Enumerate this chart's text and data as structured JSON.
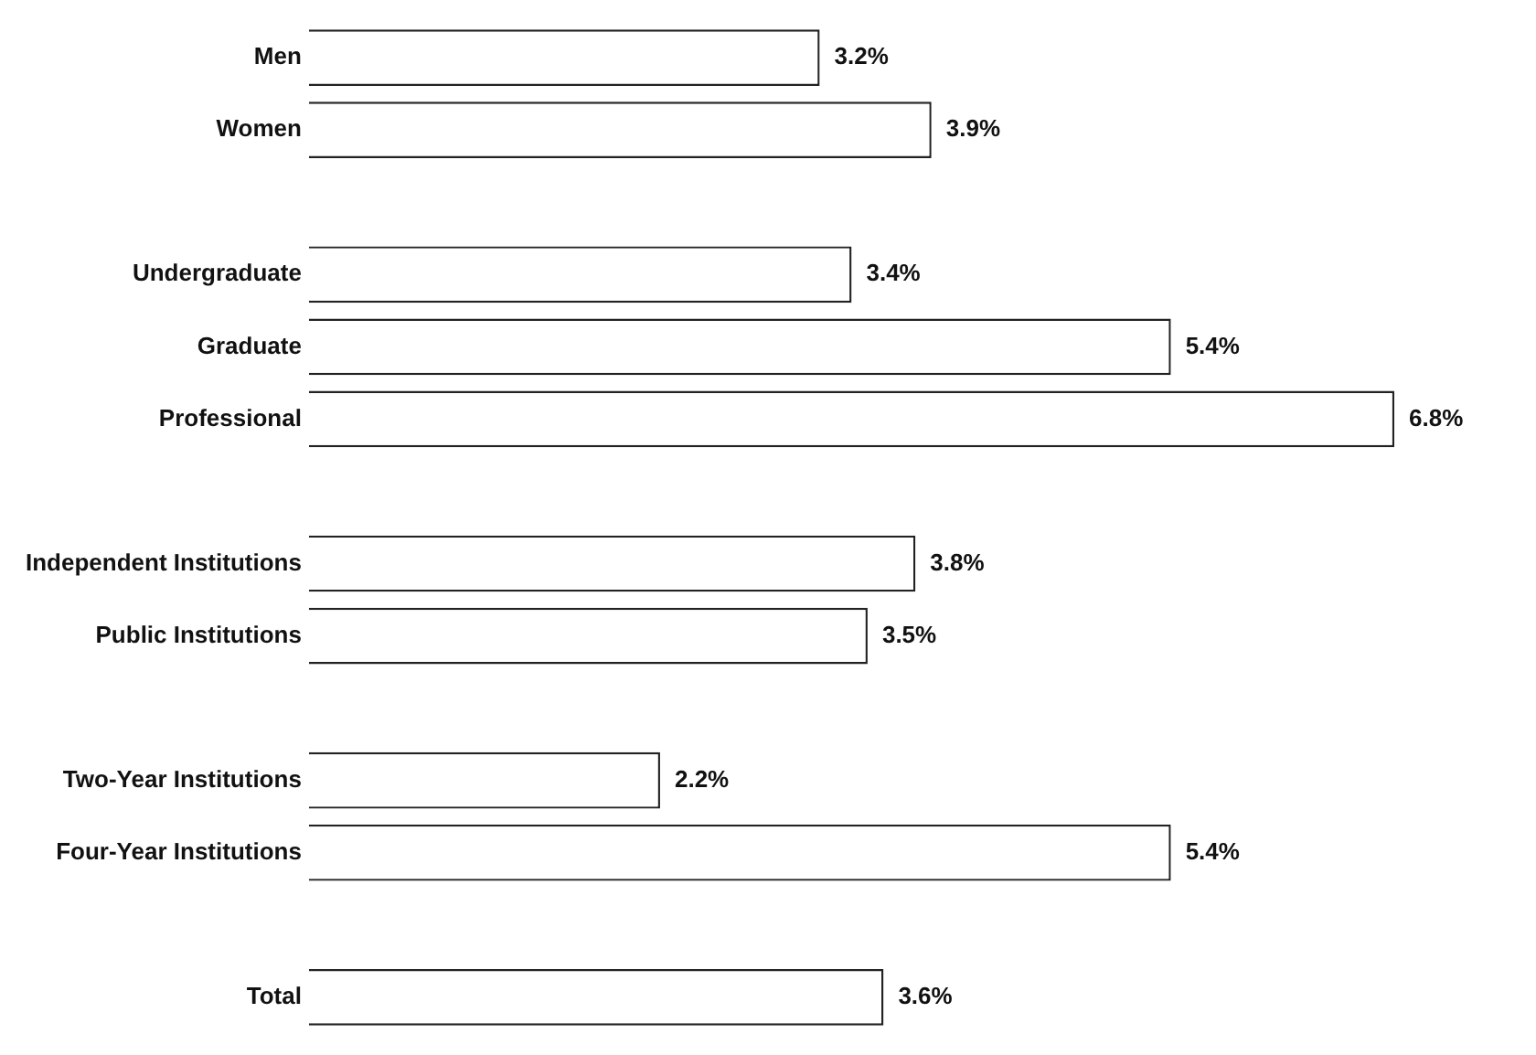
{
  "chart_data": {
    "type": "bar",
    "orientation": "horizontal",
    "categories": [
      "Men",
      "Women",
      null,
      "Undergraduate",
      "Graduate",
      "Professional",
      null,
      "Independent Institutions",
      "Public Institutions",
      null,
      "Two-Year Institutions",
      "Four-Year Institutions",
      null,
      "Total"
    ],
    "values": [
      3.2,
      3.9,
      null,
      3.4,
      5.4,
      6.8,
      null,
      3.8,
      3.5,
      null,
      2.2,
      5.4,
      null,
      3.6
    ],
    "value_labels": [
      "3.2%",
      "3.9%",
      null,
      "3.4%",
      "5.4%",
      "6.8%",
      null,
      "3.8%",
      "3.5%",
      null,
      "2.2%",
      "5.4%",
      null,
      "3.6%"
    ],
    "color": "#ffffff",
    "tick_labels": "y"
  }
}
